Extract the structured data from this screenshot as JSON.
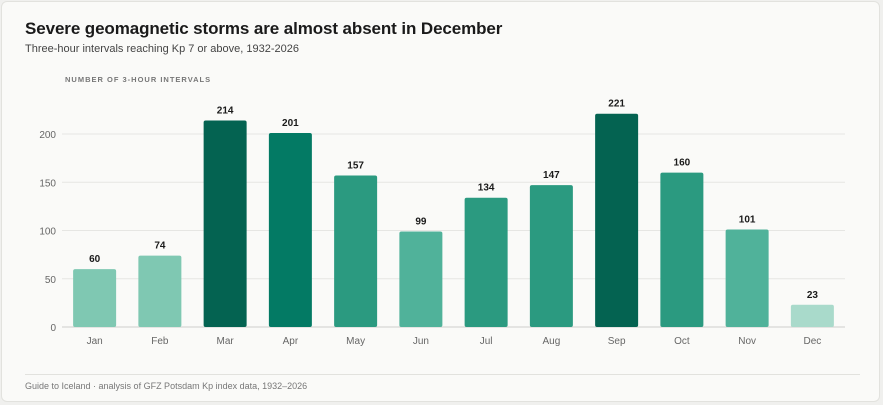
{
  "title": "Severe geomagnetic storms are almost absent in December",
  "subtitle": "Three-hour intervals reaching Kp 7 or above, 1932-2026",
  "footer": "Guide to Iceland · analysis of GFZ Potsdam Kp index data, 1932–2026",
  "chart_data": {
    "type": "bar",
    "ylabel": "NUMBER OF 3-HOUR INTERVALS",
    "categories": [
      "Jan",
      "Feb",
      "Mar",
      "Apr",
      "May",
      "Jun",
      "Jul",
      "Aug",
      "Sep",
      "Oct",
      "Nov",
      "Dec"
    ],
    "values": [
      60,
      74,
      214,
      201,
      157,
      99,
      134,
      147,
      221,
      160,
      101,
      23
    ],
    "colors": [
      "#7fc8b2",
      "#7fc8b2",
      "#046351",
      "#037a64",
      "#2b9a80",
      "#50b29a",
      "#2b9a80",
      "#2b9a80",
      "#046351",
      "#2b9a80",
      "#50b29a",
      "#a9dacb"
    ],
    "yticks": [
      0,
      50,
      100,
      150,
      200
    ],
    "ylim": [
      0,
      240
    ],
    "grid": true,
    "legend": "none"
  }
}
